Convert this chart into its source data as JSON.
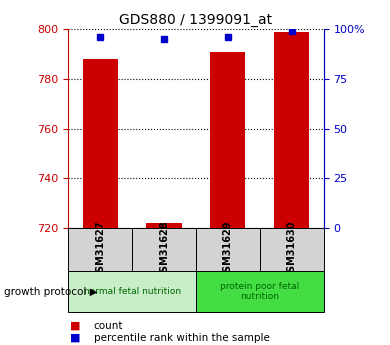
{
  "title": "GDS880 / 1399091_at",
  "samples": [
    "GSM31627",
    "GSM31628",
    "GSM31629",
    "GSM31630"
  ],
  "counts": [
    788,
    722,
    791,
    799
  ],
  "percentile_ranks": [
    96,
    95,
    96,
    99
  ],
  "ylim_left": [
    720,
    800
  ],
  "ylim_right": [
    0,
    100
  ],
  "yticks_left": [
    720,
    740,
    760,
    780,
    800
  ],
  "yticks_right": [
    0,
    25,
    50,
    75,
    100
  ],
  "groups": [
    {
      "label": "normal fetal nutrition",
      "samples": [
        0,
        1
      ],
      "color": "#c8eec8"
    },
    {
      "label": "protein poor fetal\nnutrition",
      "samples": [
        2,
        3
      ],
      "color": "#44dd44"
    }
  ],
  "bar_color": "#cc0000",
  "marker_color": "#0000cc",
  "bar_width": 0.55,
  "left_tick_color": "#cc0000",
  "right_tick_color": "#0000cc",
  "growth_label": "growth protocol",
  "legend_items": [
    "count",
    "percentile rank within the sample"
  ],
  "legend_colors": [
    "#cc0000",
    "#0000cc"
  ],
  "bg_color": "#ffffff"
}
